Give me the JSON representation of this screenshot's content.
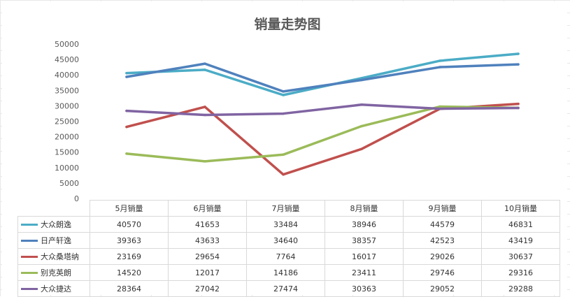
{
  "chart_data": {
    "type": "line",
    "title": "销量走势图",
    "categories": [
      "5月销量",
      "6月销量",
      "7月销量",
      "8月销量",
      "9月销量",
      "10月销量"
    ],
    "ylim": [
      0,
      50000
    ],
    "yticks": [
      0,
      5000,
      10000,
      15000,
      20000,
      25000,
      30000,
      35000,
      40000,
      45000,
      50000
    ],
    "grid": false,
    "legend": "data-table",
    "series": [
      {
        "name": "大众朗逸",
        "color": "#4bacc6",
        "values": [
          40570,
          41653,
          33484,
          38946,
          44579,
          46831
        ]
      },
      {
        "name": "日产轩逸",
        "color": "#4f81bd",
        "values": [
          39363,
          43633,
          34640,
          38357,
          42523,
          43419
        ]
      },
      {
        "name": "大众桑塔纳",
        "color": "#c0504d",
        "values": [
          23169,
          29654,
          7764,
          16017,
          29026,
          30637
        ]
      },
      {
        "name": "别克英朗",
        "color": "#9bbb59",
        "values": [
          14520,
          12017,
          14186,
          23411,
          29746,
          29316
        ]
      },
      {
        "name": "大众捷达",
        "color": "#8064a2",
        "values": [
          28364,
          27042,
          27474,
          30363,
          29052,
          29288
        ]
      }
    ]
  }
}
